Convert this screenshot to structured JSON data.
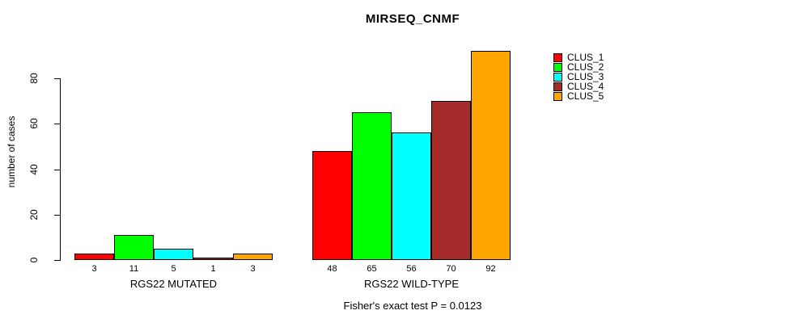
{
  "chart_data": {
    "type": "bar",
    "title": "MIRSEQ_CNMF",
    "xlabel": "",
    "ylabel": "number of cases",
    "ylim": [
      0,
      92
    ],
    "yticks": [
      0,
      20,
      40,
      60,
      80
    ],
    "grid": false,
    "legend_position": "right-top",
    "groups": [
      {
        "label": "RGS22 MUTATED",
        "values": [
          3,
          11,
          5,
          1,
          3
        ]
      },
      {
        "label": "RGS22 WILD-TYPE",
        "values": [
          48,
          65,
          56,
          70,
          92
        ]
      }
    ],
    "series_colors": [
      "#ff0000",
      "#00ff00",
      "#00ffff",
      "#a52a2a",
      "#ffa500"
    ],
    "legend": [
      {
        "label": "CLUS_1",
        "color": "#ff0000"
      },
      {
        "label": "CLUS_2",
        "color": "#00ff00"
      },
      {
        "label": "CLUS_3",
        "color": "#00ffff"
      },
      {
        "label": "CLUS_4",
        "color": "#a52a2a"
      },
      {
        "label": "CLUS_5",
        "color": "#ffa500"
      }
    ],
    "annotation": "Fisher's exact test P = 0.0123",
    "axis_color": "#000000",
    "background_color": "#ffffff"
  }
}
